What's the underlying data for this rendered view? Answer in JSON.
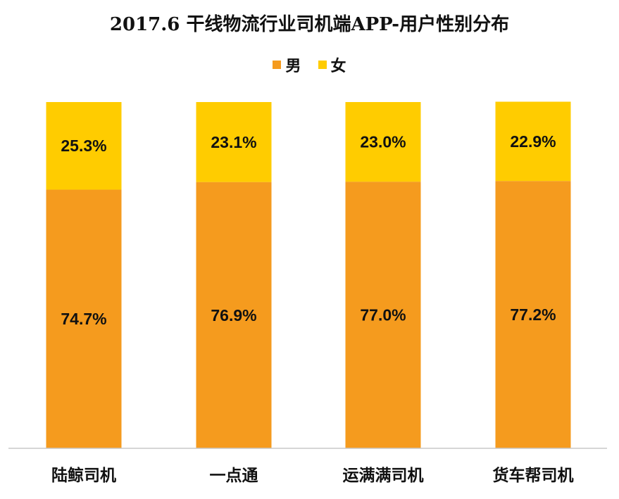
{
  "chart_data": {
    "type": "bar",
    "stacked": true,
    "percent": true,
    "title": "2017.6 干线物流行业司机端APP-用户性别分布",
    "categories": [
      "陆鲸司机",
      "一点通",
      "运满满司机",
      "货车帮司机"
    ],
    "series": [
      {
        "name": "男",
        "color": "#F59B1E",
        "values": [
          74.7,
          76.9,
          77.0,
          77.2
        ],
        "labels": [
          "74.7%",
          "76.9%",
          "77.0%",
          "77.2%"
        ]
      },
      {
        "name": "女",
        "color": "#FFCC00",
        "values": [
          25.3,
          23.1,
          23.0,
          22.9
        ],
        "labels": [
          "25.3%",
          "23.1%",
          "23.0%",
          "22.9%"
        ]
      }
    ],
    "ylim": [
      0,
      100
    ],
    "legend_position": "top",
    "grid": false,
    "xlabel": "",
    "ylabel": ""
  }
}
